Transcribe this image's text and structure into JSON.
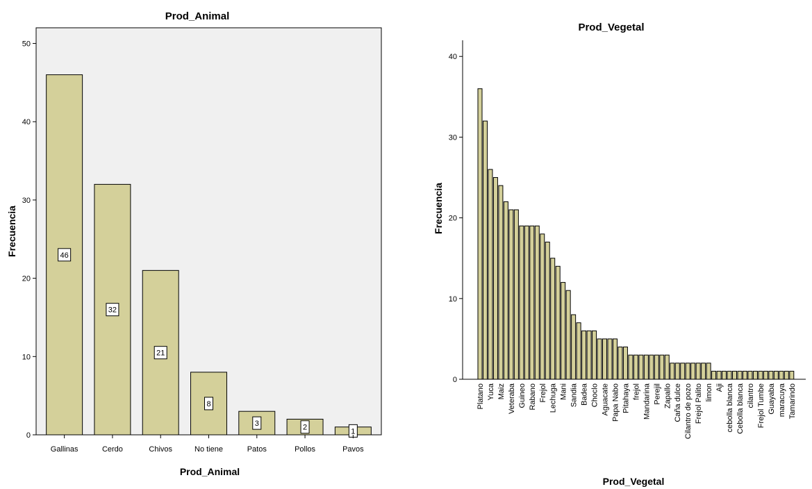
{
  "colors": {
    "bar_fill": "#d4d09a",
    "plot_bg": "#f0f0f0",
    "frame": "#000000"
  },
  "chart_data": [
    {
      "type": "bar",
      "title": "Prod_Animal",
      "xlabel": "Prod_Animal",
      "ylabel": "Frecuencia",
      "ylim": [
        0,
        52
      ],
      "yticks": [
        0,
        10,
        20,
        30,
        40,
        50
      ],
      "grid": false,
      "data_labels": true,
      "categories": [
        "Gallinas",
        "Cerdo",
        "Chivos",
        "No tiene",
        "Patos",
        "Pollos",
        "Pavos"
      ],
      "values": [
        46,
        32,
        21,
        8,
        3,
        2,
        1
      ]
    },
    {
      "type": "bar",
      "title": "Prod_Vegetal",
      "xlabel": "Prod_Vegetal",
      "ylabel": "Frecuencia",
      "ylim": [
        0,
        42
      ],
      "yticks": [
        0,
        10,
        20,
        30,
        40
      ],
      "grid": false,
      "data_labels": false,
      "categories": [
        "Platano",
        "",
        "Yuca",
        "",
        "Maiz",
        "",
        "Veteraba",
        "",
        "Guineo",
        "",
        "Rabano",
        "",
        "Frejol",
        "",
        "Lechuga",
        "",
        "Mani",
        "",
        "Sandia",
        "",
        "Badea",
        "",
        "Choclo",
        "",
        "Aguacate",
        "",
        "Papa Nabo",
        "",
        "Pitahaya",
        "",
        "frejol",
        "",
        "Mandarina",
        "",
        "Perejil",
        "",
        "Zapallo",
        "",
        "Caña dulce",
        "",
        "Cilantro de pozo",
        "",
        "Frejol Palito",
        "",
        "limon",
        "",
        "Aji",
        "",
        "cebolla blanca",
        "",
        "Cebolla blanca",
        "",
        "cilantro",
        "",
        "Frejol Tumbe",
        "",
        "Guayaba",
        "",
        "maracuya",
        "",
        "Tamarindo"
      ],
      "values": [
        36,
        32,
        26,
        25,
        24,
        22,
        21,
        21,
        19,
        19,
        19,
        19,
        18,
        17,
        15,
        14,
        12,
        11,
        8,
        7,
        6,
        6,
        6,
        5,
        5,
        5,
        5,
        4,
        4,
        3,
        3,
        3,
        3,
        3,
        3,
        3,
        3,
        2,
        2,
        2,
        2,
        2,
        2,
        2,
        2,
        1,
        1,
        1,
        1,
        1,
        1,
        1,
        1,
        1,
        1,
        1,
        1,
        1,
        1,
        1,
        1
      ]
    }
  ]
}
